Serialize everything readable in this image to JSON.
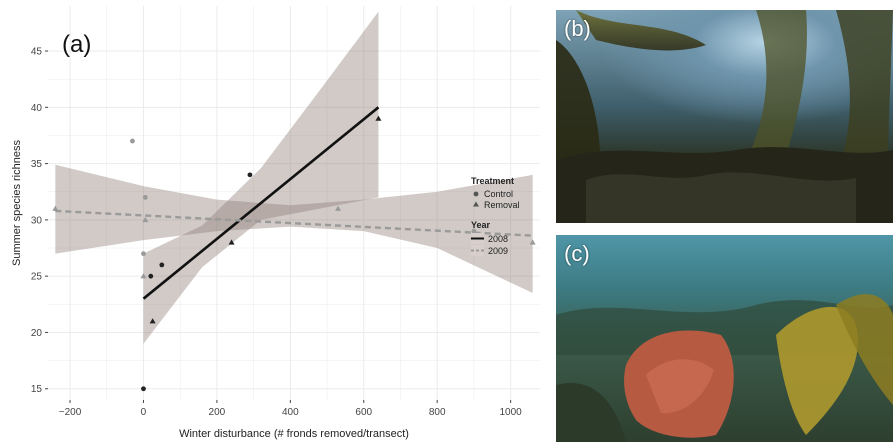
{
  "chart_data": {
    "type": "scatter",
    "panel_label": "(a)",
    "xlabel": "Winter disturbance (# fronds removed/transect)",
    "ylabel": "Summer species richness",
    "xlim": [
      -260,
      1080
    ],
    "ylim": [
      14,
      49
    ],
    "x_ticks": [
      -200,
      0,
      200,
      400,
      600,
      800,
      1000
    ],
    "y_ticks": [
      15,
      20,
      25,
      30,
      35,
      40,
      45
    ],
    "grid": true,
    "legend_position": "right",
    "legends": {
      "treatment": {
        "title": "Treatment",
        "items": [
          "Control",
          "Removal"
        ]
      },
      "year": {
        "title": "Year",
        "items": [
          "2008",
          "2009"
        ]
      }
    },
    "colors": {
      "y2008": "#111111",
      "y2009": "#9a9a9a",
      "ribbon": "#8c7a74",
      "panel_bg": "#ffffff",
      "grid": "#ebebeb"
    },
    "series": [
      {
        "name": "2008",
        "fit": {
          "x0": 0,
          "y0": 23,
          "x1": 640,
          "y1": 40
        },
        "ci_lower": [
          [
            0,
            19
          ],
          [
            160,
            25.8
          ],
          [
            320,
            30
          ],
          [
            480,
            31
          ],
          [
            640,
            32
          ]
        ],
        "ci_upper": [
          [
            0,
            27
          ],
          [
            160,
            29.5
          ],
          [
            320,
            34.6
          ],
          [
            480,
            41.5
          ],
          [
            640,
            48.5
          ]
        ],
        "points": [
          {
            "x": 0,
            "y": 15,
            "treatment": "Control"
          },
          {
            "x": 20,
            "y": 25,
            "treatment": "Control"
          },
          {
            "x": 50,
            "y": 26,
            "treatment": "Control"
          },
          {
            "x": 290,
            "y": 34,
            "treatment": "Control"
          },
          {
            "x": 25,
            "y": 21,
            "treatment": "Removal"
          },
          {
            "x": 240,
            "y": 28,
            "treatment": "Removal"
          },
          {
            "x": 640,
            "y": 39,
            "treatment": "Removal"
          }
        ]
      },
      {
        "name": "2009",
        "fit": {
          "x0": -240,
          "y0": 30.8,
          "x1": 1060,
          "y1": 28.6
        },
        "ci_lower": [
          [
            -240,
            27
          ],
          [
            0,
            28.2
          ],
          [
            200,
            29
          ],
          [
            400,
            29.4
          ],
          [
            600,
            29
          ],
          [
            800,
            27.5
          ],
          [
            1060,
            23.5
          ]
        ],
        "ci_upper": [
          [
            -240,
            34.9
          ],
          [
            0,
            33
          ],
          [
            200,
            31.8
          ],
          [
            400,
            31.3
          ],
          [
            600,
            31.8
          ],
          [
            800,
            32.5
          ],
          [
            1060,
            34
          ]
        ],
        "points": [
          {
            "x": -30,
            "y": 37,
            "treatment": "Control"
          },
          {
            "x": 5,
            "y": 32,
            "treatment": "Control"
          },
          {
            "x": 0,
            "y": 27,
            "treatment": "Control"
          },
          {
            "x": 900,
            "y": 29,
            "treatment": "Control"
          },
          {
            "x": -240,
            "y": 31,
            "treatment": "Removal"
          },
          {
            "x": 0,
            "y": 25,
            "treatment": "Removal"
          },
          {
            "x": 5,
            "y": 30,
            "treatment": "Removal"
          },
          {
            "x": 530,
            "y": 31,
            "treatment": "Removal"
          },
          {
            "x": 1060,
            "y": 28,
            "treatment": "Removal"
          }
        ]
      }
    ]
  },
  "photos": {
    "b": {
      "label": "(b)"
    },
    "c": {
      "label": "(c)"
    }
  }
}
